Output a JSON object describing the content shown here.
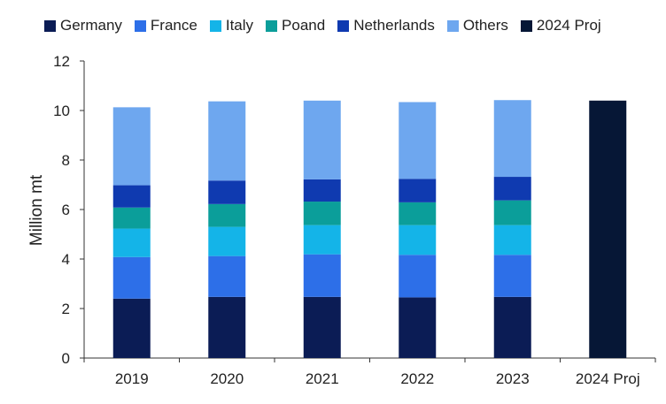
{
  "chart_data": {
    "type": "bar",
    "stacked": true,
    "categories": [
      "2019",
      "2020",
      "2021",
      "2022",
      "2023",
      "2024 Proj"
    ],
    "series": [
      {
        "name": "Germany",
        "color": "#0b1c55",
        "values": [
          2.4,
          2.47,
          2.47,
          2.45,
          2.47,
          null
        ]
      },
      {
        "name": "France",
        "color": "#2d6fe8",
        "values": [
          1.68,
          1.65,
          1.72,
          1.72,
          1.7,
          null
        ]
      },
      {
        "name": "Italy",
        "color": "#14b4e8",
        "values": [
          1.15,
          1.18,
          1.18,
          1.2,
          1.2,
          null
        ]
      },
      {
        "name": "Poand",
        "color": "#0b9e9a",
        "values": [
          0.85,
          0.92,
          0.95,
          0.92,
          1.0,
          null
        ]
      },
      {
        "name": "Netherlands",
        "color": "#0f3ab0",
        "values": [
          0.9,
          0.95,
          0.9,
          0.95,
          0.95,
          null
        ]
      },
      {
        "name": "Others",
        "color": "#6ea7ef",
        "values": [
          3.15,
          3.2,
          3.18,
          3.1,
          3.1,
          null
        ]
      },
      {
        "name": "2024 Proj",
        "color": "#061736",
        "values": [
          null,
          null,
          null,
          null,
          null,
          10.4
        ]
      }
    ],
    "ylabel": "Million mt",
    "ylim": [
      0,
      12
    ],
    "yticks": [
      0,
      2,
      4,
      6,
      8,
      10,
      12
    ],
    "grid": false,
    "legend_position": "top"
  }
}
